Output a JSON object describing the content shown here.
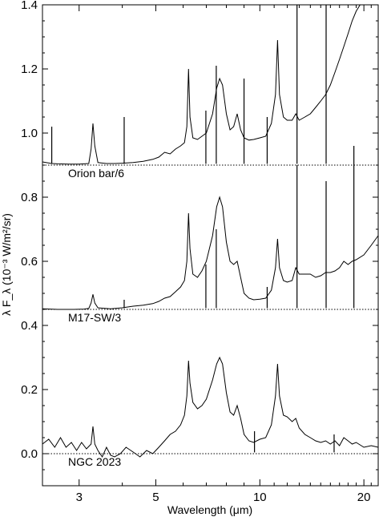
{
  "chart_data": {
    "type": "line",
    "xlabel": "Wavelength (μm)",
    "ylabel": "λ F_λ (10⁻³ W/m²/sr)",
    "xscale": "log",
    "xlim": [
      2.35,
      22.0
    ],
    "ylim": [
      -0.1,
      1.4
    ],
    "xticks": [
      3,
      5,
      10,
      20
    ],
    "yticks": [
      0.0,
      0.2,
      0.4,
      0.6,
      0.8,
      1.0,
      1.2,
      1.4
    ],
    "ytick_labels": [
      "0.0",
      "0.2",
      "0.4",
      "0.6",
      "0.8",
      "1.0",
      "1.2",
      "1.4"
    ],
    "grid": false,
    "series": [
      {
        "name": "Orion bar/6",
        "baseline": 0.9,
        "points": [
          [
            2.35,
            0.91
          ],
          [
            2.5,
            0.905
          ],
          [
            2.6,
            0.904
          ],
          [
            2.8,
            0.903
          ],
          [
            3.0,
            0.903
          ],
          [
            3.2,
            0.905
          ],
          [
            3.25,
            0.95
          ],
          [
            3.29,
            1.03
          ],
          [
            3.33,
            0.96
          ],
          [
            3.4,
            0.908
          ],
          [
            3.6,
            0.905
          ],
          [
            3.8,
            0.905
          ],
          [
            4.0,
            0.906
          ],
          [
            4.3,
            0.908
          ],
          [
            4.6,
            0.912
          ],
          [
            4.9,
            0.918
          ],
          [
            5.1,
            0.925
          ],
          [
            5.3,
            0.94
          ],
          [
            5.5,
            0.935
          ],
          [
            5.7,
            0.95
          ],
          [
            5.9,
            0.96
          ],
          [
            6.05,
            0.97
          ],
          [
            6.15,
            1.02
          ],
          [
            6.22,
            1.2
          ],
          [
            6.28,
            1.05
          ],
          [
            6.4,
            0.985
          ],
          [
            6.6,
            0.98
          ],
          [
            6.8,
            0.99
          ],
          [
            7.0,
            1.0
          ],
          [
            7.3,
            1.06
          ],
          [
            7.5,
            1.14
          ],
          [
            7.65,
            1.17
          ],
          [
            7.8,
            1.15
          ],
          [
            8.0,
            1.06
          ],
          [
            8.2,
            1.01
          ],
          [
            8.4,
            1.02
          ],
          [
            8.6,
            1.06
          ],
          [
            8.8,
            1.01
          ],
          [
            9.0,
            0.985
          ],
          [
            9.3,
            0.978
          ],
          [
            9.6,
            0.98
          ],
          [
            10.0,
            0.985
          ],
          [
            10.4,
            0.99
          ],
          [
            10.8,
            1.03
          ],
          [
            11.1,
            1.12
          ],
          [
            11.25,
            1.29
          ],
          [
            11.4,
            1.12
          ],
          [
            11.7,
            1.05
          ],
          [
            12.0,
            1.04
          ],
          [
            12.4,
            1.04
          ],
          [
            12.7,
            1.06
          ],
          [
            13.0,
            1.04
          ],
          [
            13.5,
            1.05
          ],
          [
            14.0,
            1.06
          ],
          [
            14.5,
            1.08
          ],
          [
            15.0,
            1.1
          ],
          [
            15.5,
            1.12
          ],
          [
            16.0,
            1.15
          ],
          [
            16.5,
            1.19
          ],
          [
            17.0,
            1.23
          ],
          [
            17.5,
            1.27
          ],
          [
            18.0,
            1.31
          ],
          [
            18.5,
            1.35
          ],
          [
            19.0,
            1.38
          ],
          [
            19.5,
            1.4
          ],
          [
            20.0,
            1.4
          ]
        ],
        "lines": [
          [
            2.5,
            1.02
          ],
          [
            4.05,
            1.05
          ],
          [
            6.98,
            1.07
          ],
          [
            7.48,
            1.21
          ],
          [
            9.0,
            1.17
          ],
          [
            10.5,
            1.05
          ],
          [
            12.81,
            1.4
          ],
          [
            15.55,
            1.4
          ]
        ]
      },
      {
        "name": "M17-SW/3",
        "baseline": 0.45,
        "points": [
          [
            2.35,
            0.452
          ],
          [
            2.6,
            0.45
          ],
          [
            2.9,
            0.45
          ],
          [
            3.1,
            0.451
          ],
          [
            3.2,
            0.453
          ],
          [
            3.25,
            0.47
          ],
          [
            3.29,
            0.497
          ],
          [
            3.33,
            0.47
          ],
          [
            3.4,
            0.455
          ],
          [
            3.7,
            0.452
          ],
          [
            4.0,
            0.455
          ],
          [
            4.3,
            0.46
          ],
          [
            4.6,
            0.463
          ],
          [
            4.9,
            0.468
          ],
          [
            5.1,
            0.475
          ],
          [
            5.3,
            0.485
          ],
          [
            5.5,
            0.49
          ],
          [
            5.7,
            0.505
          ],
          [
            5.9,
            0.52
          ],
          [
            6.05,
            0.54
          ],
          [
            6.15,
            0.6
          ],
          [
            6.22,
            0.75
          ],
          [
            6.28,
            0.64
          ],
          [
            6.4,
            0.56
          ],
          [
            6.6,
            0.55
          ],
          [
            6.8,
            0.57
          ],
          [
            7.0,
            0.6
          ],
          [
            7.3,
            0.68
          ],
          [
            7.5,
            0.77
          ],
          [
            7.65,
            0.8
          ],
          [
            7.8,
            0.77
          ],
          [
            8.0,
            0.66
          ],
          [
            8.2,
            0.6
          ],
          [
            8.4,
            0.59
          ],
          [
            8.6,
            0.6
          ],
          [
            8.8,
            0.55
          ],
          [
            9.0,
            0.5
          ],
          [
            9.3,
            0.485
          ],
          [
            9.6,
            0.48
          ],
          [
            10.0,
            0.482
          ],
          [
            10.4,
            0.485
          ],
          [
            10.8,
            0.51
          ],
          [
            11.1,
            0.58
          ],
          [
            11.25,
            0.67
          ],
          [
            11.4,
            0.58
          ],
          [
            11.7,
            0.54
          ],
          [
            12.0,
            0.535
          ],
          [
            12.4,
            0.54
          ],
          [
            12.7,
            0.58
          ],
          [
            13.0,
            0.56
          ],
          [
            13.5,
            0.56
          ],
          [
            14.0,
            0.56
          ],
          [
            14.5,
            0.55
          ],
          [
            15.0,
            0.555
          ],
          [
            15.5,
            0.565
          ],
          [
            16.0,
            0.565
          ],
          [
            16.5,
            0.57
          ],
          [
            17.0,
            0.58
          ],
          [
            17.5,
            0.6
          ],
          [
            18.0,
            0.59
          ],
          [
            18.5,
            0.6
          ],
          [
            19.0,
            0.605
          ],
          [
            20.0,
            0.62
          ],
          [
            21.0,
            0.65
          ],
          [
            22.0,
            0.68
          ]
        ],
        "lines": [
          [
            4.05,
            0.48
          ],
          [
            6.98,
            0.59
          ],
          [
            7.48,
            0.7
          ],
          [
            10.5,
            0.52
          ],
          [
            12.81,
            0.9
          ],
          [
            15.55,
            0.85
          ],
          [
            18.71,
            0.96
          ]
        ]
      },
      {
        "name": "NGC 2023",
        "baseline": 0.0,
        "points": [
          [
            2.35,
            0.03
          ],
          [
            2.45,
            0.045
          ],
          [
            2.55,
            0.02
          ],
          [
            2.65,
            0.05
          ],
          [
            2.75,
            0.02
          ],
          [
            2.85,
            0.035
          ],
          [
            2.95,
            0.01
          ],
          [
            3.05,
            0.035
          ],
          [
            3.15,
            0.015
          ],
          [
            3.25,
            0.03
          ],
          [
            3.29,
            0.085
          ],
          [
            3.33,
            0.03
          ],
          [
            3.4,
            0.01
          ],
          [
            3.5,
            -0.01
          ],
          [
            3.6,
            0.02
          ],
          [
            3.7,
            -0.005
          ],
          [
            3.8,
            -0.01
          ],
          [
            3.95,
            0.0
          ],
          [
            4.1,
            0.02
          ],
          [
            4.3,
            0.005
          ],
          [
            4.5,
            -0.01
          ],
          [
            4.7,
            0.01
          ],
          [
            4.9,
            0.0
          ],
          [
            5.1,
            0.02
          ],
          [
            5.3,
            0.04
          ],
          [
            5.5,
            0.06
          ],
          [
            5.7,
            0.07
          ],
          [
            5.9,
            0.09
          ],
          [
            6.05,
            0.12
          ],
          [
            6.15,
            0.18
          ],
          [
            6.22,
            0.29
          ],
          [
            6.28,
            0.22
          ],
          [
            6.4,
            0.16
          ],
          [
            6.6,
            0.14
          ],
          [
            6.8,
            0.15
          ],
          [
            7.0,
            0.17
          ],
          [
            7.3,
            0.23
          ],
          [
            7.5,
            0.28
          ],
          [
            7.65,
            0.3
          ],
          [
            7.8,
            0.28
          ],
          [
            8.0,
            0.19
          ],
          [
            8.2,
            0.13
          ],
          [
            8.4,
            0.12
          ],
          [
            8.6,
            0.15
          ],
          [
            8.8,
            0.11
          ],
          [
            9.0,
            0.06
          ],
          [
            9.3,
            0.04
          ],
          [
            9.6,
            0.035
          ],
          [
            10.0,
            0.045
          ],
          [
            10.4,
            0.05
          ],
          [
            10.8,
            0.09
          ],
          [
            11.1,
            0.18
          ],
          [
            11.25,
            0.28
          ],
          [
            11.4,
            0.18
          ],
          [
            11.7,
            0.12
          ],
          [
            12.0,
            0.115
          ],
          [
            12.4,
            0.1
          ],
          [
            12.7,
            0.11
          ],
          [
            13.0,
            0.08
          ],
          [
            13.5,
            0.06
          ],
          [
            14.0,
            0.05
          ],
          [
            14.5,
            0.04
          ],
          [
            15.0,
            0.035
          ],
          [
            15.5,
            0.04
          ],
          [
            16.0,
            0.03
          ],
          [
            16.5,
            0.04
          ],
          [
            17.0,
            0.025
          ],
          [
            17.5,
            0.05
          ],
          [
            18.0,
            0.04
          ],
          [
            18.5,
            0.03
          ],
          [
            19.0,
            0.035
          ],
          [
            20.0,
            0.02
          ],
          [
            21.0,
            0.025
          ],
          [
            22.0,
            0.02
          ]
        ],
        "lines": [
          [
            9.65,
            0.07
          ],
          [
            16.4,
            0.06
          ]
        ]
      }
    ]
  }
}
